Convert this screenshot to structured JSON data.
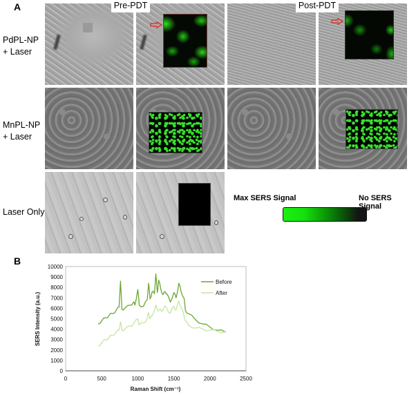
{
  "panel_a": {
    "letter": "A",
    "column_labels": [
      "Pre-PDT",
      "Post-PDT"
    ],
    "rows": [
      {
        "label_line1": "PdPL-NP",
        "label_line2": "+ Laser"
      },
      {
        "label_line1": "MnPL-NP",
        "label_line2": "+ Laser"
      },
      {
        "label_line1": "Laser Only",
        "label_line2": ""
      }
    ],
    "signal_scale": {
      "max_label": "Max SERS Signal",
      "min_label": "No SERS Signal",
      "max_color": "#18f010",
      "min_color": "#151515"
    }
  },
  "panel_b": {
    "letter": "B"
  },
  "chart_data": {
    "type": "line",
    "title": "",
    "xlabel": "Raman Shift (cm⁻¹)",
    "ylabel": "SERS Intensity (a.u.)",
    "xlim": [
      0,
      2500
    ],
    "ylim": [
      0,
      10000
    ],
    "x_ticks": [
      0,
      500,
      1000,
      1500,
      2000,
      2500
    ],
    "y_ticks": [
      0,
      1000,
      2000,
      3000,
      4000,
      5000,
      6000,
      7000,
      8000,
      9000,
      10000
    ],
    "grid": false,
    "legend_position": "upper right",
    "series": [
      {
        "name": "Before",
        "color": "#6aa630",
        "x": [
          450,
          500,
          560,
          600,
          650,
          700,
          740,
          760,
          780,
          820,
          900,
          940,
          960,
          1000,
          1020,
          1080,
          1130,
          1150,
          1170,
          1200,
          1230,
          1250,
          1270,
          1290,
          1320,
          1350,
          1380,
          1400,
          1450,
          1500,
          1530,
          1570,
          1600,
          1640,
          1660,
          1700,
          1800,
          1900,
          2000,
          2100,
          2220
        ],
        "values": [
          4500,
          4800,
          5100,
          5300,
          5500,
          5800,
          6100,
          8600,
          5900,
          6000,
          6300,
          6600,
          6300,
          7800,
          6300,
          6200,
          6800,
          8400,
          6900,
          7600,
          7400,
          9300,
          7500,
          8700,
          7800,
          7300,
          7600,
          7400,
          6600,
          7500,
          7000,
          8400,
          7600,
          7000,
          5800,
          5500,
          4900,
          4500,
          4200,
          3900,
          3700
        ]
      },
      {
        "name": "After",
        "color": "#c5e5a0",
        "x": [
          450,
          500,
          560,
          600,
          650,
          700,
          740,
          760,
          780,
          820,
          900,
          940,
          1000,
          1020,
          1080,
          1130,
          1150,
          1170,
          1200,
          1250,
          1270,
          1300,
          1330,
          1370,
          1400,
          1450,
          1500,
          1530,
          1570,
          1600,
          1640,
          1660,
          1700,
          1800,
          1900,
          2000,
          2100,
          2220
        ],
        "values": [
          2400,
          2700,
          3000,
          3200,
          3400,
          3700,
          3900,
          4700,
          3900,
          4000,
          4300,
          4500,
          5000,
          4400,
          4600,
          5000,
          5600,
          5000,
          5300,
          6300,
          5800,
          5900,
          5700,
          6200,
          6000,
          5500,
          6200,
          5800,
          6700,
          6100,
          5300,
          4800,
          4400,
          4100,
          4000,
          3900,
          3800,
          3750
        ]
      }
    ]
  }
}
